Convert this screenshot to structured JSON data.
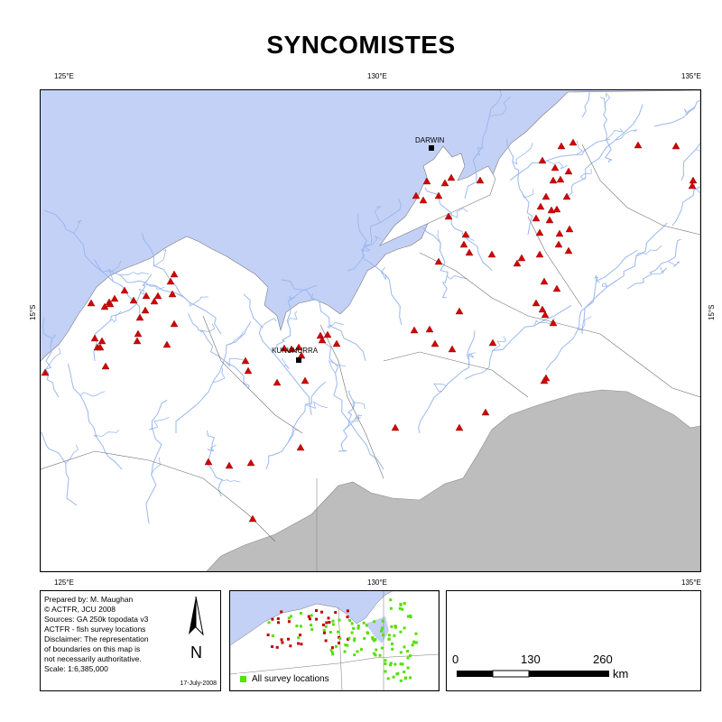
{
  "title": "SYNCOMISTES",
  "graticule": {
    "lon_top": [
      "125°E",
      "130°E",
      "135°E"
    ],
    "lon_bottom": [
      "125°E",
      "130°E",
      "135°E"
    ],
    "lat_left": "15°S",
    "lat_right": "15°S"
  },
  "places": {
    "darwin": "DARWIN",
    "kununurra": "KUNUNURRA"
  },
  "info": {
    "lines": [
      "Prepared by: M. Maughan",
      "© ACTFR, JCU 2008",
      "Sources: GA 250k topodata v3",
      "ACTFR - fish survey locations",
      "Disclaimer: The representation",
      "of boundaries on this map is",
      "not necessarily authoritative.",
      "Scale: 1:6,385,000"
    ],
    "date": "17-July-2008",
    "north_letter": "N"
  },
  "inset": {
    "legend_label": "All survey locations"
  },
  "scale": {
    "labels": [
      "0",
      "130",
      "260"
    ],
    "unit": "km"
  },
  "colors": {
    "sea": "#c3d1f7",
    "land": "#ffffff",
    "gray_land": "#bdbdbd",
    "river": "#9ab8ef",
    "marker": "#d40000",
    "survey": "#54e000"
  }
}
